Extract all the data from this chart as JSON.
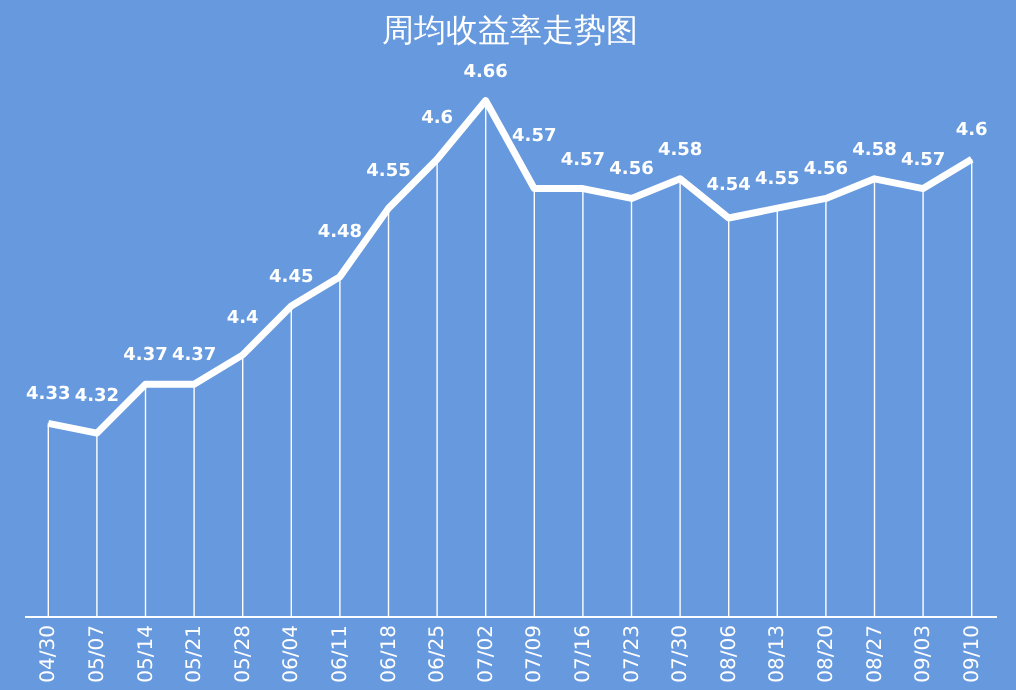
{
  "chart_data": {
    "type": "line",
    "title": "周均收益率走势图",
    "categories": [
      "04/30",
      "05/07",
      "05/14",
      "05/21",
      "05/28",
      "06/04",
      "06/11",
      "06/18",
      "06/25",
      "07/02",
      "07/09",
      "07/16",
      "07/23",
      "07/30",
      "08/06",
      "08/13",
      "08/20",
      "08/27",
      "09/03",
      "09/10"
    ],
    "series": [
      {
        "color": "#ffffff",
        "values": [
          4.33,
          4.32,
          4.37,
          4.37,
          4.4,
          4.45,
          4.48,
          4.55,
          4.6,
          4.66,
          4.57,
          4.57,
          4.56,
          4.58,
          4.54,
          4.55,
          4.56,
          4.58,
          4.57,
          4.6
        ]
      }
    ],
    "data_labels": true,
    "grid": "x",
    "marker": "none",
    "line_style": "solid"
  }
}
